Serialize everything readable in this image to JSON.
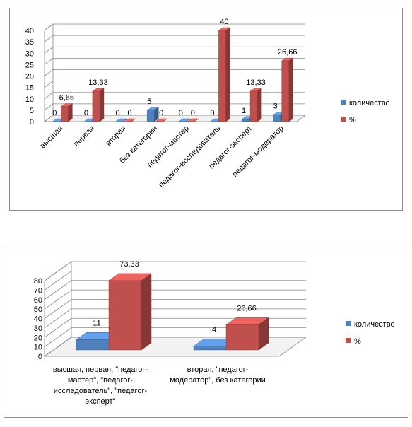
{
  "chart_data": [
    {
      "type": "bar",
      "categories": [
        "высшая",
        "первая",
        "вторая",
        "без категории",
        "педагог-мастер",
        "педагог-исследователь",
        "педагог-эксперт",
        "педагог-модератор"
      ],
      "series": [
        {
          "name": "количество",
          "values": [
            0,
            0,
            0,
            5,
            0,
            0,
            1,
            3
          ],
          "labels": [
            "0",
            "0",
            "0",
            "5",
            "0",
            "0",
            "1",
            "3"
          ]
        },
        {
          "name": "%",
          "values": [
            6.66,
            13.33,
            0,
            0,
            0,
            40,
            13.33,
            26.66
          ],
          "labels": [
            "6,66",
            "13,33",
            "0",
            "0",
            "0",
            "40",
            "13,33",
            "26,66"
          ]
        }
      ],
      "ylim": [
        0,
        40
      ],
      "yticks": [
        "0",
        "5",
        "10",
        "15",
        "20",
        "25",
        "30",
        "35",
        "40"
      ],
      "grid": true,
      "legend_position": "right",
      "colors": [
        "#4f81bd",
        "#c0504d"
      ]
    },
    {
      "type": "bar",
      "categories": [
        "высшая, первая, \"педагог-мастер\", \"педагог-исследователь\", \"педагог-эксперт\"",
        "вторая, \"педагог-модератор\", без категории"
      ],
      "category_lines": [
        [
          "высшая, первая, \"педагог-",
          "мастер\", \"педагог-",
          "исследователь\", \"педагог-",
          "эксперт\""
        ],
        [
          "вторая, \"педагог-",
          "модератор\", без категории"
        ]
      ],
      "series": [
        {
          "name": "количество",
          "values": [
            11,
            4
          ],
          "labels": [
            "11",
            "4"
          ]
        },
        {
          "name": "%",
          "values": [
            73.33,
            26.66
          ],
          "labels": [
            "73,33",
            "26,66"
          ]
        }
      ],
      "ylim": [
        0,
        80
      ],
      "yticks": [
        "0",
        "10",
        "20",
        "30",
        "40",
        "50",
        "60",
        "70",
        "80"
      ],
      "grid": true,
      "legend_position": "right",
      "colors": [
        "#4f81bd",
        "#c0504d"
      ]
    }
  ]
}
